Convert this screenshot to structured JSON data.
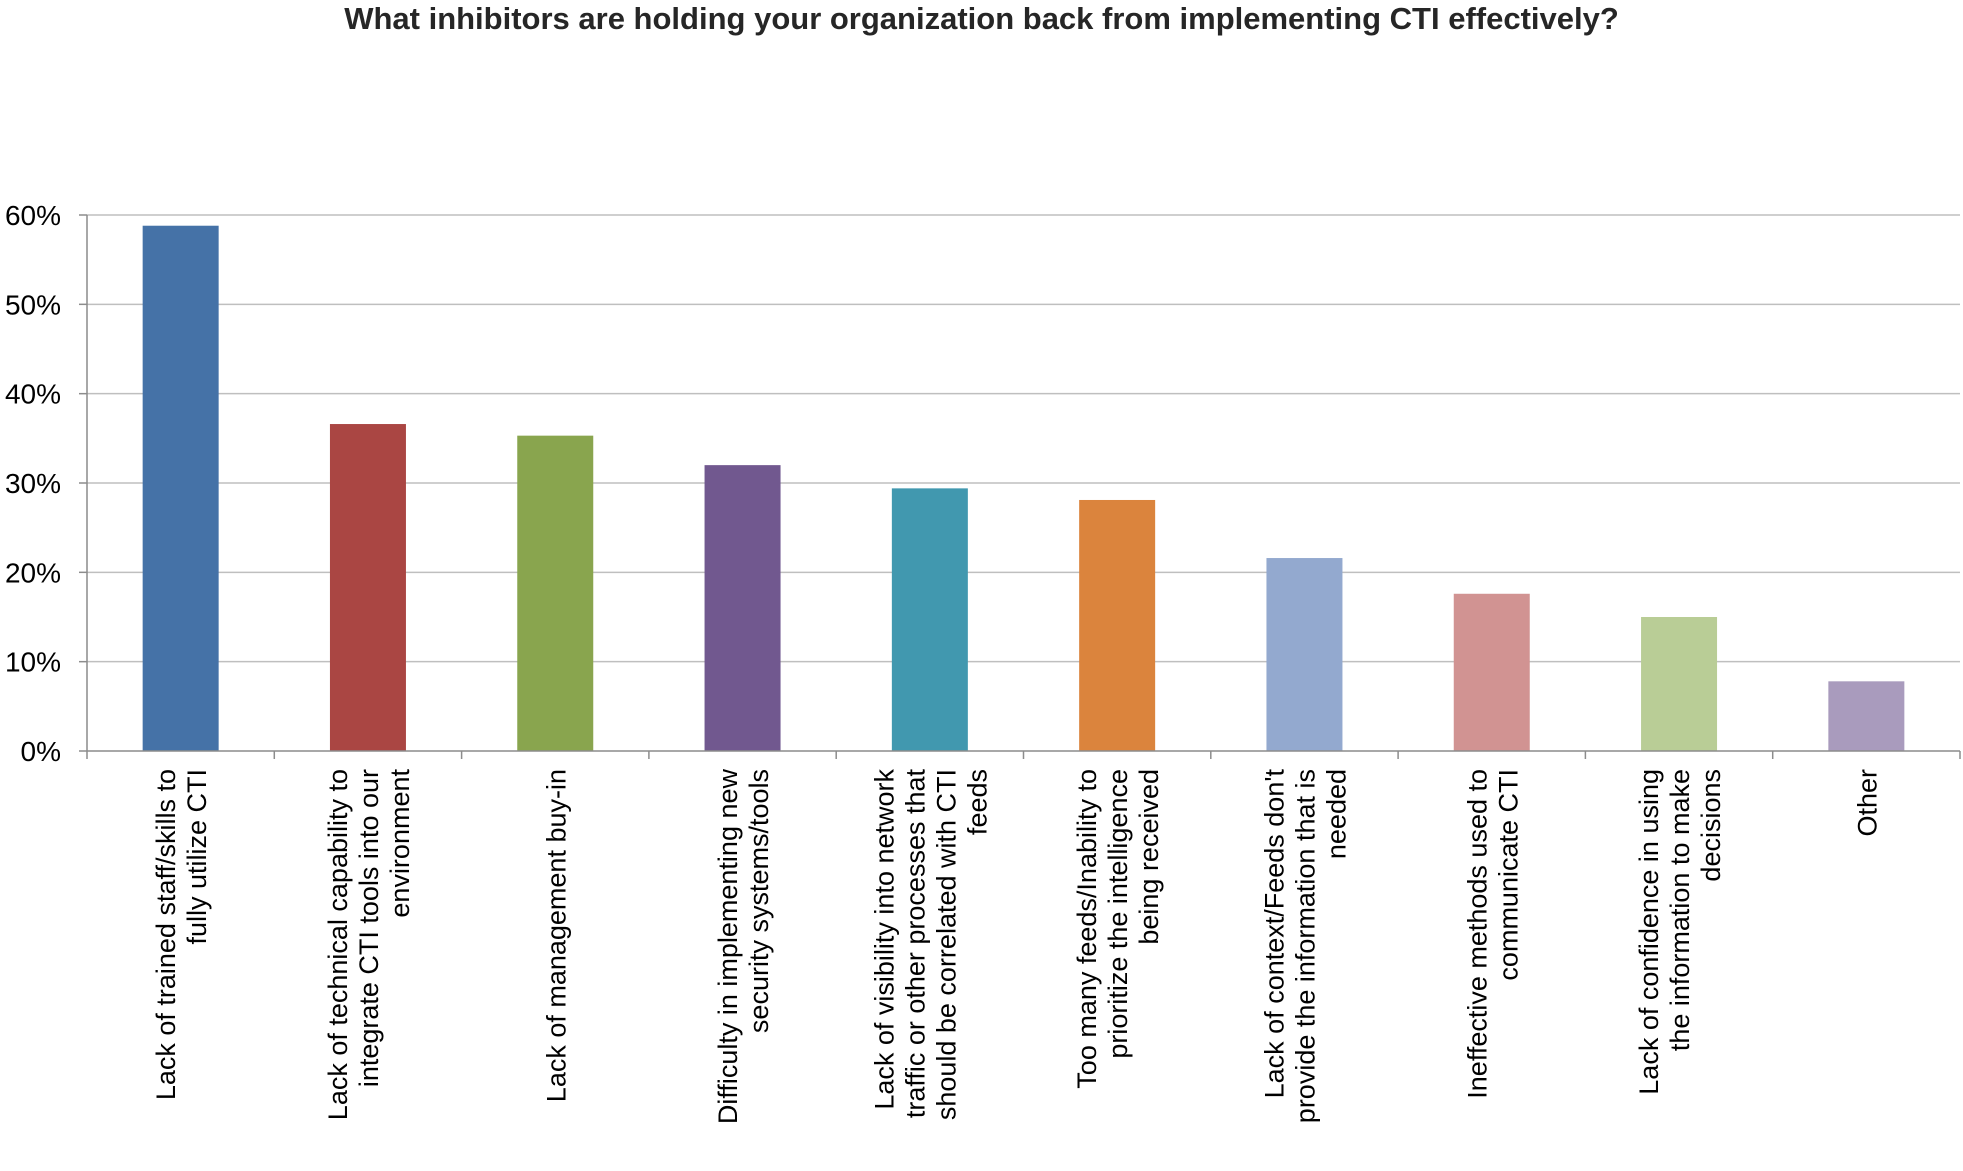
{
  "chart_data": {
    "type": "bar",
    "title": "What inhibitors are holding your organization back from implementing CTI effectively?",
    "xlabel": "",
    "ylabel": "",
    "ylim": [
      0,
      60
    ],
    "yticks": [
      "0%",
      "10%",
      "20%",
      "30%",
      "40%",
      "50%",
      "60%"
    ],
    "grid": true,
    "legend": "none",
    "categories": [
      [
        "Lack of trained staff/skills to",
        "fully utilize CTI"
      ],
      [
        "Lack of technical capability to",
        "integrate CTI tools into our",
        "environment"
      ],
      [
        "Lack of management buy-in"
      ],
      [
        "Difficulty in implementing new",
        "security systems/tools"
      ],
      [
        "Lack of visibility into network",
        "traffic or other processes that",
        "should be correlated with CTI",
        "feeds"
      ],
      [
        "Too many feeds/Inability to",
        "prioritize the intelligence",
        "being received"
      ],
      [
        "Lack of context/Feeds don't",
        "provide the information that is",
        "needed"
      ],
      [
        "Ineffective methods used to",
        "communicate CTI"
      ],
      [
        "Lack of confidence in using",
        "the information to make",
        "decisions"
      ],
      [
        "Other"
      ]
    ],
    "values": [
      58.8,
      36.6,
      35.3,
      32.0,
      29.4,
      28.1,
      21.6,
      17.6,
      15.0,
      7.8
    ],
    "colors": [
      "#4572a7",
      "#aa4643",
      "#89a54e",
      "#71588f",
      "#4198af",
      "#db843d",
      "#93a9cf",
      "#d19392",
      "#b9cd96",
      "#a99bbd"
    ]
  }
}
